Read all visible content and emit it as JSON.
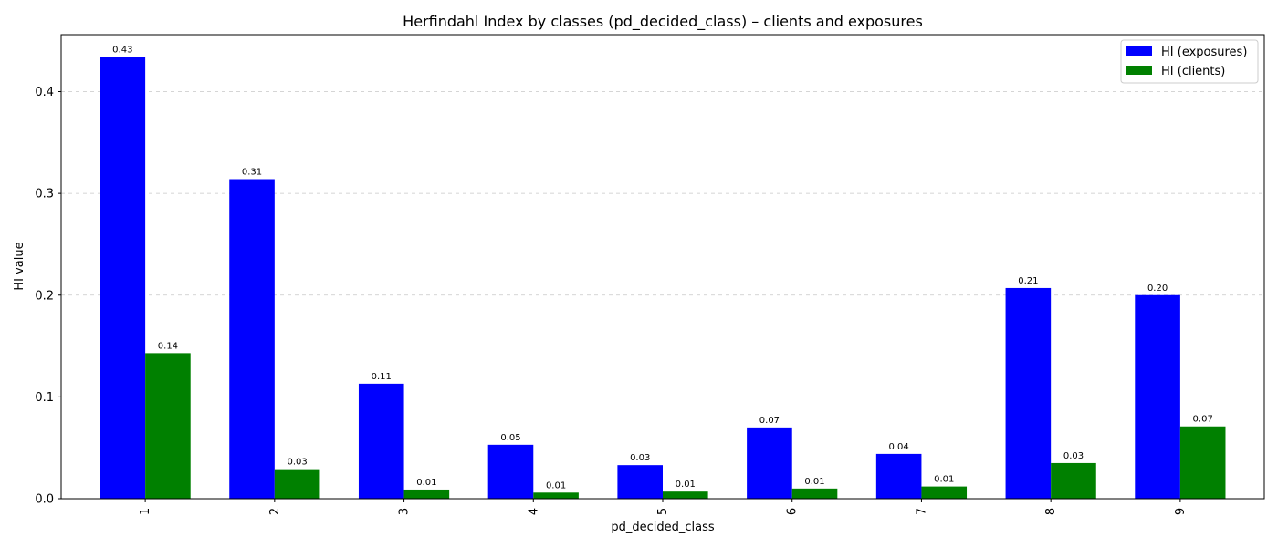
{
  "chart_data": {
    "type": "bar",
    "title": "Herfindahl Index by classes (pd_decided_class) – clients and exposures",
    "xlabel": "pd_decided_class",
    "ylabel": "HI value",
    "categories": [
      "1",
      "2",
      "3",
      "4",
      "5",
      "6",
      "7",
      "8",
      "9"
    ],
    "series": [
      {
        "name": "HI (exposures)",
        "color": "#0000ff",
        "values": [
          0.434,
          0.314,
          0.113,
          0.053,
          0.033,
          0.07,
          0.044,
          0.207,
          0.2
        ],
        "labels": [
          "0.43",
          "0.31",
          "0.11",
          "0.05",
          "0.03",
          "0.07",
          "0.04",
          "0.21",
          "0.20"
        ]
      },
      {
        "name": "HI (clients)",
        "color": "#008000",
        "values": [
          0.143,
          0.029,
          0.009,
          0.006,
          0.007,
          0.01,
          0.012,
          0.035,
          0.071
        ],
        "labels": [
          "0.14",
          "0.03",
          "0.01",
          "0.01",
          "0.01",
          "0.01",
          "0.01",
          "0.03",
          "0.07"
        ]
      }
    ],
    "ylim": [
      0,
      0.456
    ],
    "yticks": [
      "0.0",
      "0.1",
      "0.2",
      "0.3",
      "0.4"
    ],
    "ytick_values": [
      0.0,
      0.1,
      0.2,
      0.3,
      0.4
    ],
    "grid": "y-dashed",
    "legend_position": "top-right",
    "xtick_rotation": "vertical"
  }
}
